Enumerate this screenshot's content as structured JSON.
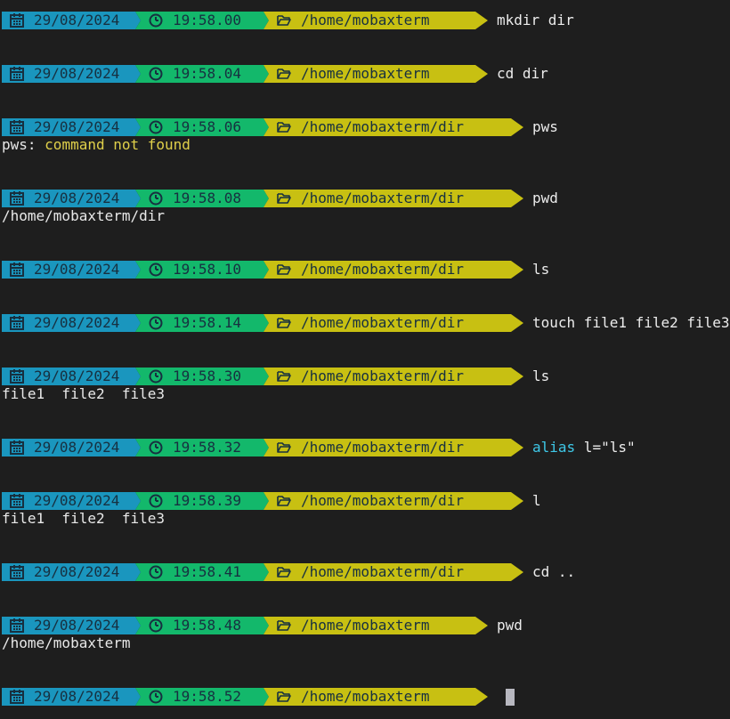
{
  "colors": {
    "background": "#1e1e1e",
    "date_segment": "#1a96be",
    "time_segment": "#13b86b",
    "path_segment": "#c8c012",
    "segment_text": "#173040",
    "command_text": "#ececec",
    "keyword": "#3ec8e8",
    "error_text": "#e0d04a",
    "cursor": "#b8b8c0"
  },
  "icons": {
    "date": "calendar-icon",
    "time": "clock-icon",
    "path": "folder-open-icon"
  },
  "entries": [
    {
      "date": "29/08/2024",
      "time": "19:58.00",
      "path": "/home/mobaxterm",
      "cmd": "mkdir dir",
      "output": []
    },
    {
      "date": "29/08/2024",
      "time": "19:58.04",
      "path": "/home/mobaxterm",
      "cmd": "cd dir",
      "output": []
    },
    {
      "date": "29/08/2024",
      "time": "19:58.06",
      "path": "/home/mobaxterm/dir",
      "cmd": "pws",
      "output": [
        {
          "prefix": "pws: ",
          "error": "command not found"
        }
      ]
    },
    {
      "date": "29/08/2024",
      "time": "19:58.08",
      "path": "/home/mobaxterm/dir",
      "cmd": "pwd",
      "output": [
        {
          "text": "/home/mobaxterm/dir"
        }
      ]
    },
    {
      "date": "29/08/2024",
      "time": "19:58.10",
      "path": "/home/mobaxterm/dir",
      "cmd": "ls",
      "output": []
    },
    {
      "date": "29/08/2024",
      "time": "19:58.14",
      "path": "/home/mobaxterm/dir",
      "cmd": "touch file1 file2 file3",
      "output": []
    },
    {
      "date": "29/08/2024",
      "time": "19:58.30",
      "path": "/home/mobaxterm/dir",
      "cmd": "ls",
      "output": [
        {
          "text": "file1  file2  file3"
        }
      ]
    },
    {
      "date": "29/08/2024",
      "time": "19:58.32",
      "path": "/home/mobaxterm/dir",
      "cmd_kw": "alias",
      "cmd": " l=\"ls\"",
      "output": []
    },
    {
      "date": "29/08/2024",
      "time": "19:58.39",
      "path": "/home/mobaxterm/dir",
      "cmd": "l",
      "output": [
        {
          "text": "file1  file2  file3"
        }
      ]
    },
    {
      "date": "29/08/2024",
      "time": "19:58.41",
      "path": "/home/mobaxterm/dir",
      "cmd": "cd ..",
      "output": []
    },
    {
      "date": "29/08/2024",
      "time": "19:58.48",
      "path": "/home/mobaxterm",
      "cmd": "pwd",
      "output": [
        {
          "text": "/home/mobaxterm"
        }
      ]
    },
    {
      "date": "29/08/2024",
      "time": "19:58.52",
      "path": "/home/mobaxterm",
      "cmd": "",
      "output": [],
      "cursor": true
    }
  ]
}
